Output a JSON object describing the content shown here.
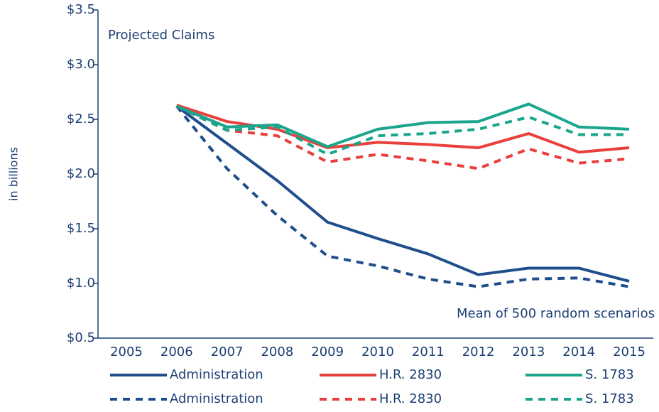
{
  "chart_data": {
    "type": "line",
    "y_label": "in billions",
    "annotations": [
      "Projected Claims",
      "Mean of 500 random scenarios"
    ],
    "categories": [
      "2005",
      "2006",
      "2007",
      "2008",
      "2009",
      "2010",
      "2011",
      "2012",
      "2013",
      "2014",
      "2015"
    ],
    "ylim": [
      0.5,
      3.5
    ],
    "yticks": [
      {
        "value": 0.5,
        "label": "$0.5"
      },
      {
        "value": 1.0,
        "label": "$1.0"
      },
      {
        "value": 1.5,
        "label": "$1.5"
      },
      {
        "value": 2.0,
        "label": "$2.0"
      },
      {
        "value": 2.5,
        "label": "$2.5"
      },
      {
        "value": 3.0,
        "label": "$3.0"
      },
      {
        "value": 3.5,
        "label": "$3.5"
      }
    ],
    "series": [
      {
        "name": "Administration",
        "color": "#1f4e8c",
        "dashed": false,
        "values": [
          null,
          2.62,
          2.28,
          1.94,
          1.56,
          1.41,
          1.27,
          1.08,
          1.14,
          1.14,
          1.02
        ]
      },
      {
        "name": "H.R. 2830",
        "color": "#e8403c",
        "dashed": false,
        "values": [
          null,
          2.63,
          2.48,
          2.41,
          2.24,
          2.29,
          2.27,
          2.24,
          2.37,
          2.2,
          2.24
        ]
      },
      {
        "name": "S. 1783",
        "color": "#1aa58c",
        "dashed": false,
        "values": [
          null,
          2.62,
          2.43,
          2.45,
          2.25,
          2.41,
          2.47,
          2.48,
          2.64,
          2.43,
          2.41
        ]
      },
      {
        "name": "Administration",
        "color": "#1f4e8c",
        "dashed": true,
        "values": [
          null,
          2.62,
          2.05,
          1.62,
          1.25,
          1.16,
          1.04,
          0.97,
          1.04,
          1.05,
          0.97
        ]
      },
      {
        "name": "H.R. 2830",
        "color": "#e8403c",
        "dashed": true,
        "values": [
          null,
          2.62,
          2.4,
          2.35,
          2.11,
          2.18,
          2.12,
          2.05,
          2.23,
          2.1,
          2.14
        ]
      },
      {
        "name": "S. 1783",
        "color": "#1aa58c",
        "dashed": true,
        "values": [
          null,
          2.62,
          2.4,
          2.43,
          2.18,
          2.35,
          2.37,
          2.41,
          2.52,
          2.36,
          2.36
        ]
      }
    ]
  }
}
